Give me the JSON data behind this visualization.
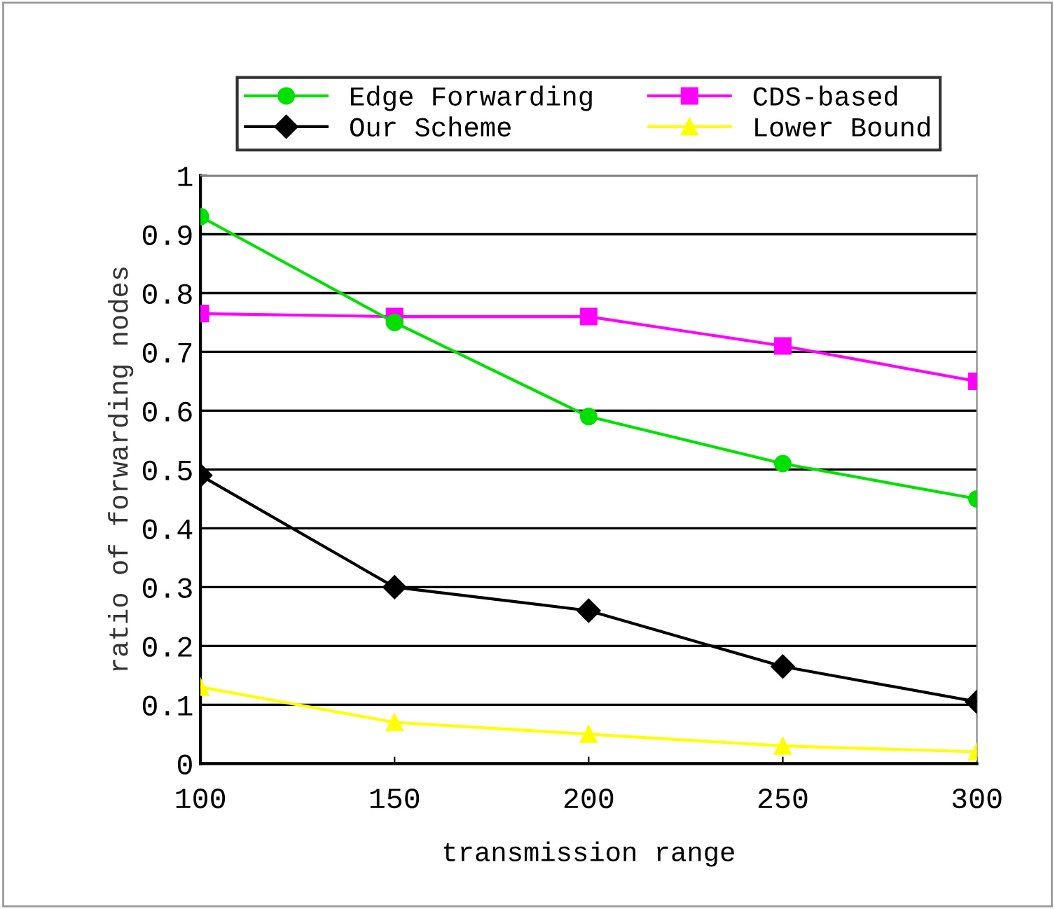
{
  "chart_data": {
    "type": "line",
    "xlabel": "transmission range",
    "ylabel": "ratio of forwarding nodes",
    "x": [
      100,
      150,
      200,
      250,
      300
    ],
    "series": [
      {
        "name": "Edge Forwarding",
        "color": "#00e000",
        "marker": "circle",
        "values": [
          0.93,
          0.75,
          0.59,
          0.51,
          0.45
        ]
      },
      {
        "name": "CDS-based",
        "color": "#ff00ff",
        "marker": "square",
        "values": [
          0.765,
          0.76,
          0.76,
          0.71,
          0.65
        ]
      },
      {
        "name": "Our Scheme",
        "color": "#000000",
        "marker": "diamond",
        "values": [
          0.49,
          0.3,
          0.26,
          0.165,
          0.105
        ]
      },
      {
        "name": "Lower Bound",
        "color": "#ffff00",
        "marker": "triangle",
        "values": [
          0.13,
          0.07,
          0.05,
          0.03,
          0.02
        ]
      }
    ],
    "xlim": [
      100,
      300
    ],
    "xticks": [
      100,
      150,
      200,
      250,
      300
    ],
    "ylim": [
      0,
      1
    ],
    "yticks": [
      0,
      0.1,
      0.2,
      0.3,
      0.4,
      0.5,
      0.6,
      0.7,
      0.8,
      0.9,
      1
    ],
    "grid": "y",
    "legend": "top"
  }
}
